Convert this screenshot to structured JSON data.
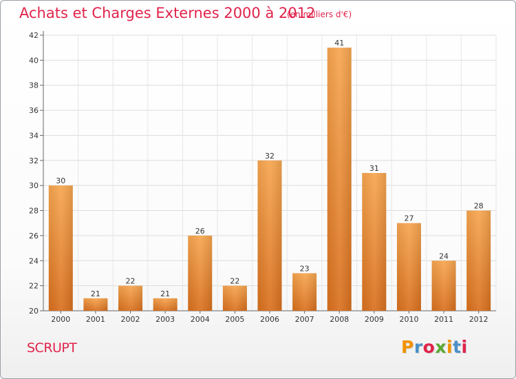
{
  "header": {
    "title": "Achats et Charges Externes 2000 à 2012",
    "subtitle": "(en milliers d'€)"
  },
  "footer": {
    "commune": "SCRUPT",
    "logo": "Proxiti"
  },
  "colors": {
    "accent": "#e0234b",
    "bar_top": "#f7a650",
    "bar_bottom": "#d9701e",
    "logo_letters": [
      "#f39200",
      "#4a90c8",
      "#e0234b",
      "#5aa832",
      "#f39200",
      "#4a90c8",
      "#e0234b"
    ]
  },
  "chart_data": {
    "type": "bar",
    "categories": [
      "2000",
      "2001",
      "2002",
      "2003",
      "2004",
      "2005",
      "2006",
      "2007",
      "2008",
      "2009",
      "2010",
      "2011",
      "2012"
    ],
    "values": [
      30,
      21,
      22,
      21,
      26,
      22,
      32,
      23,
      41,
      31,
      27,
      24,
      28
    ],
    "title": "Achats et Charges Externes 2000 à 2012",
    "xlabel": "",
    "ylabel": "",
    "ylim": [
      20,
      42
    ],
    "yticks": [
      20,
      22,
      24,
      26,
      28,
      30,
      32,
      34,
      36,
      38,
      40,
      42
    ],
    "grid": true,
    "legend": "none"
  }
}
